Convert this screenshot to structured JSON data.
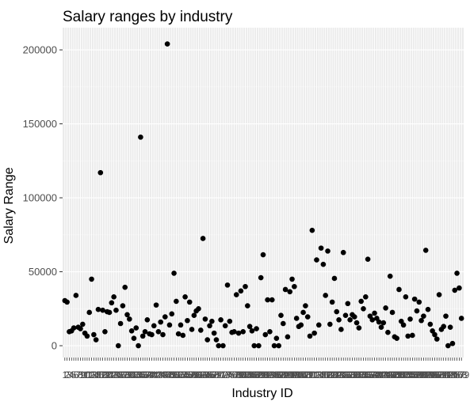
{
  "chart_data": {
    "type": "scatter",
    "title": "Salary ranges by industry",
    "xlabel": "Industry ID",
    "ylabel": "Salary Range",
    "ylim": [
      -8000,
      215000
    ],
    "y_ticks": [
      0,
      50000,
      100000,
      150000,
      200000
    ],
    "y_tick_labels": [
      "0",
      "50000",
      "100000",
      "150000",
      "200000"
    ],
    "x_label_note": "dense overlapping category tick labels (unreadable)",
    "grid": true,
    "background": "#ebebeb",
    "point_color": "#000000",
    "y": [
      30500,
      29500,
      9500,
      10000,
      12000,
      34000,
      12500,
      11500,
      14500,
      8500,
      6500,
      22500,
      45000,
      7500,
      4000,
      24500,
      117000,
      24000,
      9500,
      23000,
      22500,
      29000,
      33000,
      24000,
      0,
      15000,
      27000,
      39500,
      21000,
      18000,
      10000,
      5000,
      12000,
      0,
      141000,
      6500,
      9500,
      17500,
      8000,
      7500,
      13500,
      27500,
      9500,
      16000,
      7500,
      19500,
      204000,
      14000,
      21500,
      49000,
      30000,
      8000,
      14000,
      7000,
      33000,
      17000,
      29500,
      11000,
      20500,
      23500,
      25000,
      10500,
      72500,
      18000,
      4000,
      13500,
      16500,
      8500,
      4000,
      0,
      17500,
      0,
      13500,
      41000,
      16500,
      9000,
      9500,
      34500,
      8500,
      37000,
      9500,
      40000,
      27000,
      13000,
      10000,
      0,
      11500,
      0,
      46000,
      61500,
      7500,
      31000,
      9500,
      31000,
      0,
      5000,
      0,
      20500,
      15000,
      38000,
      6000,
      36500,
      45000,
      40000,
      18500,
      13000,
      14000,
      22500,
      27000,
      19500,
      6500,
      78000,
      8500,
      58000,
      14000,
      66000,
      55000,
      34000,
      64000,
      14500,
      29500,
      45500,
      23000,
      17500,
      11000,
      63000,
      20500,
      28500,
      17500,
      21000,
      19500,
      15500,
      12000,
      30000,
      25000,
      33000,
      58500,
      20000,
      17500,
      22000,
      18500,
      16000,
      12500,
      15500,
      25500,
      9000,
      47000,
      22500,
      6000,
      5000,
      38000,
      16500,
      14000,
      33000,
      6500,
      18000,
      7000,
      31500,
      23500,
      29500,
      17000,
      20000,
      64500,
      24500,
      14500,
      10000,
      7500,
      4500,
      34500,
      11000,
      13000,
      20000,
      0,
      12500,
      1500,
      37500,
      49000,
      39000,
      18500
    ]
  }
}
